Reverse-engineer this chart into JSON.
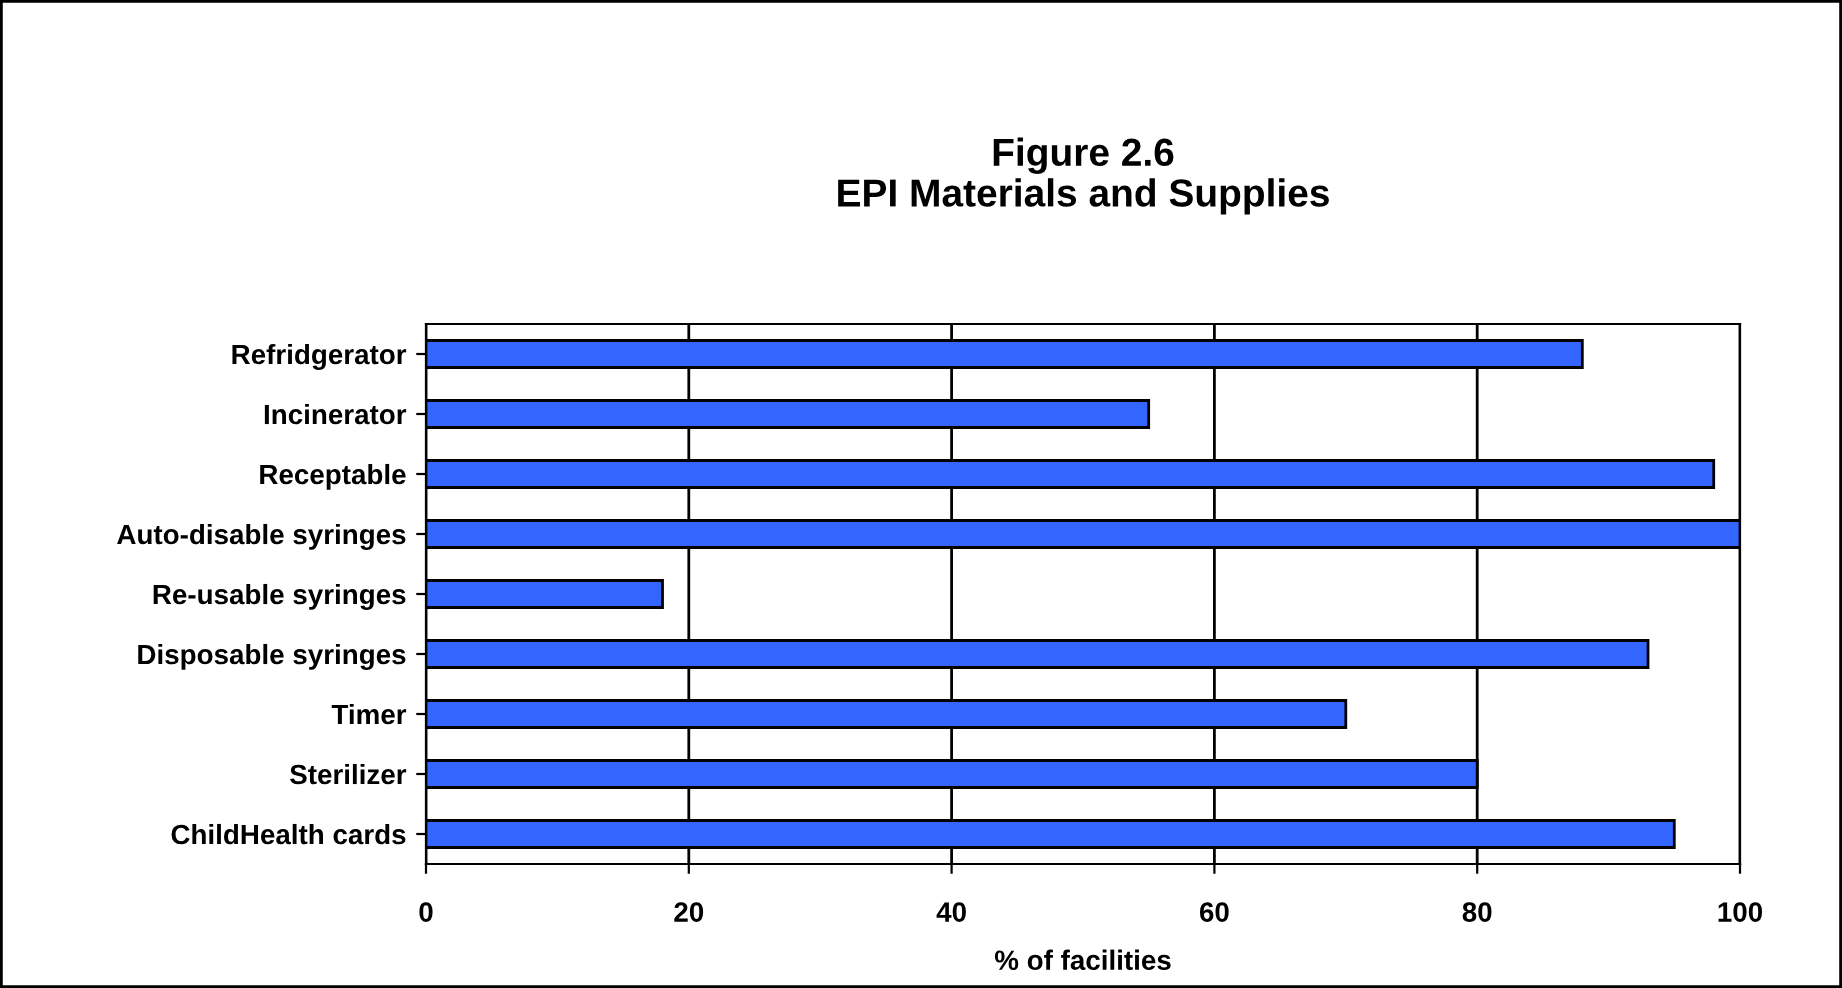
{
  "chart_data": {
    "type": "bar",
    "orientation": "horizontal",
    "title": "Figure 2.6\nEPI Materials and Supplies",
    "xlabel": "% of facilities",
    "categories": [
      "Refridgerator",
      "Incinerator",
      "Receptable",
      "Auto-disable syringes",
      "Re-usable syringes",
      "Disposable syringes",
      "Timer",
      "Sterilizer",
      "ChildHealth cards"
    ],
    "values": [
      88,
      55,
      98,
      100,
      18,
      93,
      70,
      80,
      95
    ],
    "color": "#3366ff",
    "xlim": [
      0,
      100
    ],
    "xticks": [
      0,
      20,
      40,
      60,
      80,
      100
    ],
    "grid": "x",
    "legend": false
  }
}
